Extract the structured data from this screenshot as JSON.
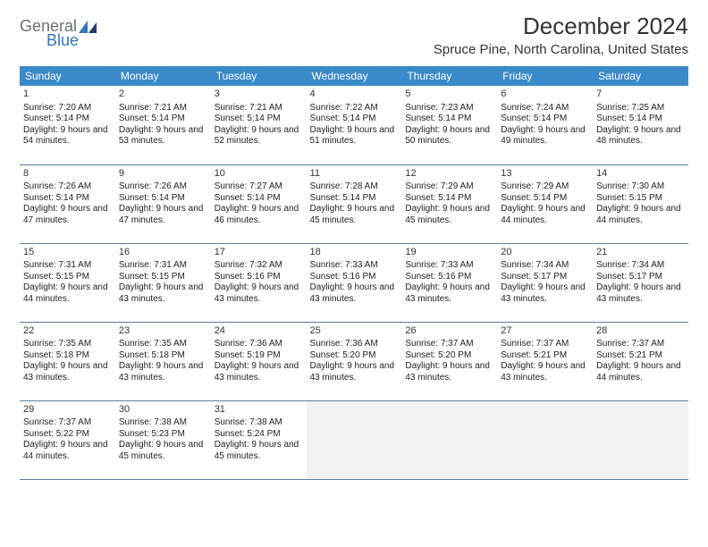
{
  "brand": {
    "general": "General",
    "blue": "Blue"
  },
  "title": "December 2024",
  "location": "Spruce Pine, North Carolina, United States",
  "header_color": "#3a89c9",
  "border_color": "#5a7fa3",
  "weekdays": [
    "Sunday",
    "Monday",
    "Tuesday",
    "Wednesday",
    "Thursday",
    "Friday",
    "Saturday"
  ],
  "labels": {
    "sunrise": "Sunrise:",
    "sunset": "Sunset:",
    "daylight": "Daylight:"
  },
  "weeks": [
    [
      {
        "num": "1",
        "sunrise": "7:20 AM",
        "sunset": "5:14 PM",
        "daylight": "9 hours and 54 minutes."
      },
      {
        "num": "2",
        "sunrise": "7:21 AM",
        "sunset": "5:14 PM",
        "daylight": "9 hours and 53 minutes."
      },
      {
        "num": "3",
        "sunrise": "7:21 AM",
        "sunset": "5:14 PM",
        "daylight": "9 hours and 52 minutes."
      },
      {
        "num": "4",
        "sunrise": "7:22 AM",
        "sunset": "5:14 PM",
        "daylight": "9 hours and 51 minutes."
      },
      {
        "num": "5",
        "sunrise": "7:23 AM",
        "sunset": "5:14 PM",
        "daylight": "9 hours and 50 minutes."
      },
      {
        "num": "6",
        "sunrise": "7:24 AM",
        "sunset": "5:14 PM",
        "daylight": "9 hours and 49 minutes."
      },
      {
        "num": "7",
        "sunrise": "7:25 AM",
        "sunset": "5:14 PM",
        "daylight": "9 hours and 48 minutes."
      }
    ],
    [
      {
        "num": "8",
        "sunrise": "7:26 AM",
        "sunset": "5:14 PM",
        "daylight": "9 hours and 47 minutes."
      },
      {
        "num": "9",
        "sunrise": "7:26 AM",
        "sunset": "5:14 PM",
        "daylight": "9 hours and 47 minutes."
      },
      {
        "num": "10",
        "sunrise": "7:27 AM",
        "sunset": "5:14 PM",
        "daylight": "9 hours and 46 minutes."
      },
      {
        "num": "11",
        "sunrise": "7:28 AM",
        "sunset": "5:14 PM",
        "daylight": "9 hours and 45 minutes."
      },
      {
        "num": "12",
        "sunrise": "7:29 AM",
        "sunset": "5:14 PM",
        "daylight": "9 hours and 45 minutes."
      },
      {
        "num": "13",
        "sunrise": "7:29 AM",
        "sunset": "5:14 PM",
        "daylight": "9 hours and 44 minutes."
      },
      {
        "num": "14",
        "sunrise": "7:30 AM",
        "sunset": "5:15 PM",
        "daylight": "9 hours and 44 minutes."
      }
    ],
    [
      {
        "num": "15",
        "sunrise": "7:31 AM",
        "sunset": "5:15 PM",
        "daylight": "9 hours and 44 minutes."
      },
      {
        "num": "16",
        "sunrise": "7:31 AM",
        "sunset": "5:15 PM",
        "daylight": "9 hours and 43 minutes."
      },
      {
        "num": "17",
        "sunrise": "7:32 AM",
        "sunset": "5:16 PM",
        "daylight": "9 hours and 43 minutes."
      },
      {
        "num": "18",
        "sunrise": "7:33 AM",
        "sunset": "5:16 PM",
        "daylight": "9 hours and 43 minutes."
      },
      {
        "num": "19",
        "sunrise": "7:33 AM",
        "sunset": "5:16 PM",
        "daylight": "9 hours and 43 minutes."
      },
      {
        "num": "20",
        "sunrise": "7:34 AM",
        "sunset": "5:17 PM",
        "daylight": "9 hours and 43 minutes."
      },
      {
        "num": "21",
        "sunrise": "7:34 AM",
        "sunset": "5:17 PM",
        "daylight": "9 hours and 43 minutes."
      }
    ],
    [
      {
        "num": "22",
        "sunrise": "7:35 AM",
        "sunset": "5:18 PM",
        "daylight": "9 hours and 43 minutes."
      },
      {
        "num": "23",
        "sunrise": "7:35 AM",
        "sunset": "5:18 PM",
        "daylight": "9 hours and 43 minutes."
      },
      {
        "num": "24",
        "sunrise": "7:36 AM",
        "sunset": "5:19 PM",
        "daylight": "9 hours and 43 minutes."
      },
      {
        "num": "25",
        "sunrise": "7:36 AM",
        "sunset": "5:20 PM",
        "daylight": "9 hours and 43 minutes."
      },
      {
        "num": "26",
        "sunrise": "7:37 AM",
        "sunset": "5:20 PM",
        "daylight": "9 hours and 43 minutes."
      },
      {
        "num": "27",
        "sunrise": "7:37 AM",
        "sunset": "5:21 PM",
        "daylight": "9 hours and 43 minutes."
      },
      {
        "num": "28",
        "sunrise": "7:37 AM",
        "sunset": "5:21 PM",
        "daylight": "9 hours and 44 minutes."
      }
    ],
    [
      {
        "num": "29",
        "sunrise": "7:37 AM",
        "sunset": "5:22 PM",
        "daylight": "9 hours and 44 minutes."
      },
      {
        "num": "30",
        "sunrise": "7:38 AM",
        "sunset": "5:23 PM",
        "daylight": "9 hours and 45 minutes."
      },
      {
        "num": "31",
        "sunrise": "7:38 AM",
        "sunset": "5:24 PM",
        "daylight": "9 hours and 45 minutes."
      },
      null,
      null,
      null,
      null
    ]
  ]
}
